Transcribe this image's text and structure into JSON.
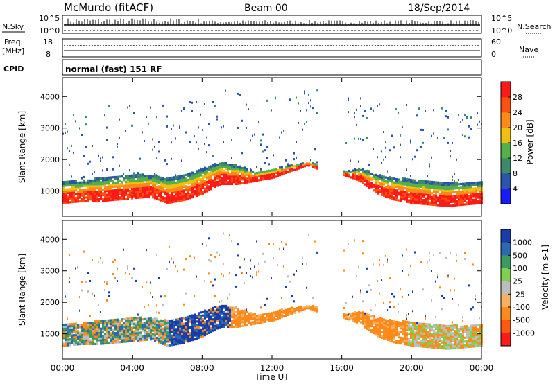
{
  "header": {
    "station": "McMurdo (fitACF)",
    "beam": "Beam 00",
    "date": "18/Sep/2014"
  },
  "top_panels": {
    "nsky_label": "N.Sky",
    "nsearch_label": "N.Search",
    "noise_ticks_left": [
      "10^5",
      "10^0"
    ],
    "noise_ticks_right": [
      "10^5",
      "10^0"
    ],
    "freq_label_1": "Freq.",
    "freq_label_2": "[MHz]",
    "freq_ticks": [
      "18",
      "8"
    ],
    "nave_label": "Nave",
    "nave_ticks": [
      "60",
      "0"
    ],
    "cpid_label": "CPID",
    "cpid_text": "normal (fast) 151 RF"
  },
  "chart_data": [
    {
      "type": "heatmap",
      "name": "power",
      "ylabel": "Slant Range [km]",
      "ylim": [
        200,
        4600
      ],
      "yticks": [
        "1000",
        "2000",
        "3000",
        "4000"
      ],
      "colorbar_label": "Power [dB]",
      "colorbar_ticks": [
        "4",
        "8",
        "12",
        "16",
        "20",
        "24",
        "28"
      ],
      "colors": [
        "#1a1aff",
        "#2a55a8",
        "#3c8a6a",
        "#55b04a",
        "#f0c010",
        "#ff8a1a",
        "#ff5010",
        "#ff1a1a"
      ],
      "band_lower_km": [
        600,
        650,
        650,
        700,
        750,
        800,
        600,
        700,
        900,
        1200,
        1200,
        1300,
        1400,
        1600,
        1800,
        1600,
        1500,
        1300,
        900,
        700,
        600,
        550,
        500,
        550,
        600
      ],
      "band_upper_km": [
        1300,
        1300,
        1400,
        1450,
        1500,
        1500,
        1400,
        1500,
        1700,
        1900,
        1800,
        1600,
        1700,
        1800,
        1900,
        1800,
        1600,
        1700,
        1500,
        1400,
        1350,
        1300,
        1250,
        1250,
        1300
      ]
    },
    {
      "type": "heatmap",
      "name": "velocity",
      "ylabel": "Slant Range [km]",
      "ylim": [
        200,
        4600
      ],
      "yticks": [
        "1000",
        "2000",
        "3000",
        "4000"
      ],
      "xlabel": "Time UT",
      "xticks": [
        "00:00",
        "04:00",
        "08:00",
        "12:00",
        "16:00",
        "20:00",
        "00:00"
      ],
      "colorbar_label": "Velocity [m s-1]",
      "colorbar_ticks": [
        "1000",
        "500",
        "100",
        "25",
        "-25",
        "-100",
        "-500",
        "-1000"
      ],
      "colors": [
        "#1a3ca8",
        "#2a6ab0",
        "#3c9a60",
        "#80d050",
        "#bdbdbd",
        "#f7b060",
        "#ff8a1a",
        "#ff5a10",
        "#ff1a1a"
      ]
    }
  ]
}
